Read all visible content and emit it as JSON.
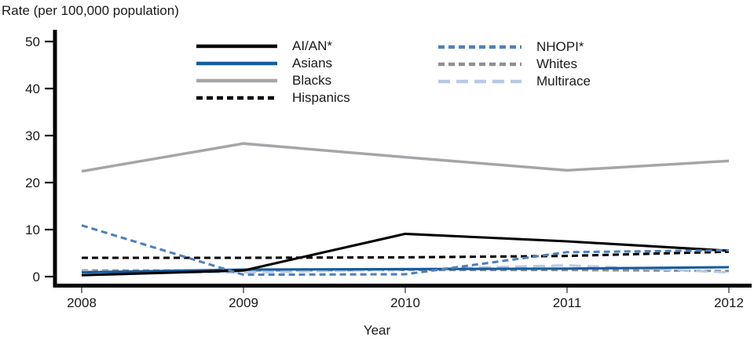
{
  "chart_data": {
    "type": "line",
    "title": "Rate (per 100,000 population)",
    "xlabel": "Year",
    "ylabel": "Rate (per 100,000 population)",
    "categories": [
      "2008",
      "2009",
      "2010",
      "2011",
      "2012"
    ],
    "ylim": [
      0,
      50
    ],
    "yticks": [
      0,
      10,
      20,
      30,
      40,
      50
    ],
    "grid": false,
    "legend_position": "top-center-two-columns",
    "axis_color": "#000000",
    "text_color": "#1a1a1a",
    "series": [
      {
        "name": "AI/AN*",
        "color": "#000000",
        "style": "solid",
        "values": [
          0.3,
          1.3,
          9.1,
          7.5,
          5.5
        ]
      },
      {
        "name": "Asians",
        "color": "#155C9E",
        "style": "solid",
        "values": [
          0.9,
          1.5,
          1.6,
          1.7,
          2.0
        ]
      },
      {
        "name": "Blacks",
        "color": "#A4A6A9",
        "style": "solid",
        "values": [
          22.4,
          28.3,
          25.4,
          22.6,
          24.6
        ]
      },
      {
        "name": "Hispanics",
        "color": "#000000",
        "style": "dashed",
        "values": [
          4.0,
          4.0,
          4.1,
          4.4,
          5.3
        ]
      },
      {
        "name": "NHOPI*",
        "color": "#4F81BD",
        "style": "dashed",
        "values": [
          10.9,
          0.4,
          0.5,
          5.2,
          5.6
        ]
      },
      {
        "name": "Whites",
        "color": "#8E9093",
        "style": "dashed",
        "values": [
          1.3,
          1.3,
          1.4,
          1.4,
          1.2
        ]
      },
      {
        "name": "Multirace",
        "color": "#B8C9E6",
        "style": "long-dash",
        "values": [
          1.1,
          0.9,
          1.5,
          2.4,
          0.9
        ]
      }
    ],
    "draw_order": [
      "Blacks",
      "Whites",
      "Multirace",
      "Asians",
      "Hispanics",
      "AI/AN*",
      "NHOPI*"
    ]
  },
  "legend": {
    "left_column": [
      "AI/AN*",
      "Asians",
      "Blacks",
      "Hispanics"
    ],
    "right_column": [
      "NHOPI*",
      "Whites",
      "Multirace"
    ]
  }
}
